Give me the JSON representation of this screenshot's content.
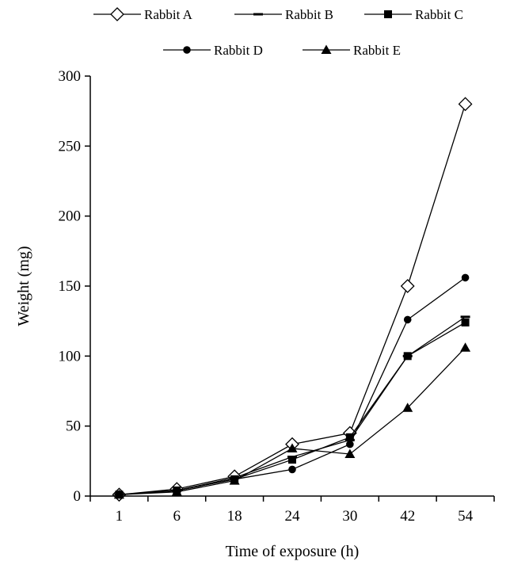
{
  "chart_data": {
    "type": "line",
    "title": "",
    "xlabel": "Time of exposure (h)",
    "ylabel": "Weight (mg)",
    "categories": [
      "1",
      "6",
      "18",
      "24",
      "30",
      "42",
      "54"
    ],
    "ylim": [
      0,
      300
    ],
    "yticks": [
      0,
      50,
      100,
      150,
      200,
      250,
      300
    ],
    "grid": false,
    "legend_position": "top",
    "series": [
      {
        "name": "Rabbit A",
        "marker": "diamond-open",
        "values": [
          1,
          5,
          14,
          37,
          45,
          150,
          280
        ]
      },
      {
        "name": "Rabbit B",
        "marker": "dash",
        "values": [
          1,
          4,
          13,
          28,
          40,
          100,
          128
        ]
      },
      {
        "name": "Rabbit C",
        "marker": "square",
        "values": [
          1,
          4,
          12,
          26,
          42,
          100,
          124
        ]
      },
      {
        "name": "Rabbit D",
        "marker": "circle",
        "values": [
          1,
          4,
          12,
          19,
          37,
          126,
          156
        ]
      },
      {
        "name": "Rabbit E",
        "marker": "triangle",
        "values": [
          1,
          3,
          11,
          34,
          30,
          63,
          106
        ]
      }
    ]
  }
}
